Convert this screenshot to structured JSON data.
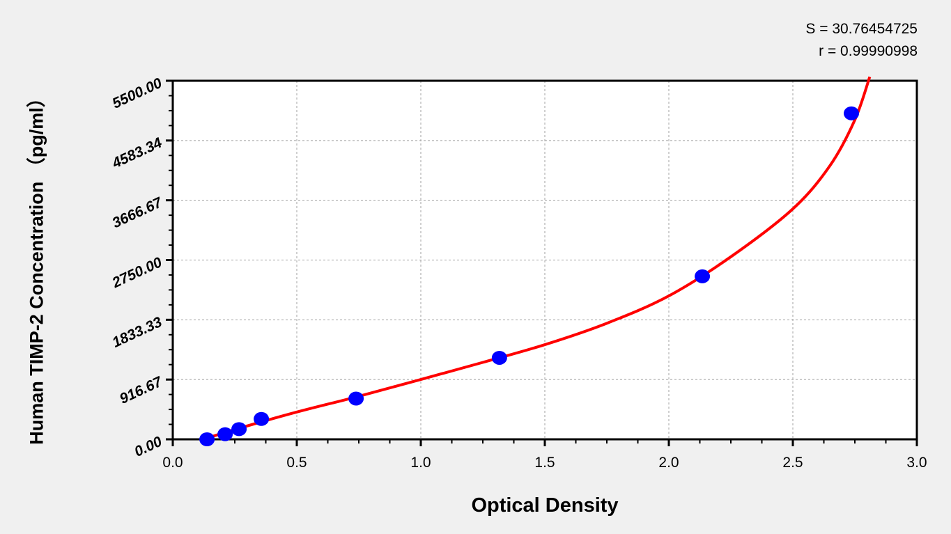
{
  "chart_data": {
    "type": "scatter",
    "title": "",
    "xlabel": "Optical Density",
    "ylabel": "Human TIMP-2 Concentration （pg/ml）",
    "xlim": [
      0,
      3.0
    ],
    "ylim": [
      0,
      5500
    ],
    "x_ticks": [
      "0.0",
      "0.5",
      "1.0",
      "1.5",
      "2.0",
      "2.5",
      "3.0"
    ],
    "y_ticks": [
      "0.00",
      "916.67",
      "1833.33",
      "2750.00",
      "3666.67",
      "4583.34",
      "5500.00"
    ],
    "grid": true,
    "annotations": {
      "s": "S = 30.76454725",
      "r": "r = 0.99990998"
    },
    "colors": {
      "points": "#0000ff",
      "fit": "#ff0000",
      "background": "#f0f0f0",
      "plot": "#ffffff"
    },
    "series": [
      {
        "type": "scatter",
        "x": [
          0.138,
          0.211,
          0.267,
          0.357,
          0.739,
          1.317,
          2.135,
          2.736
        ],
        "y": [
          0,
          78.13,
          156.25,
          312.5,
          625,
          1250,
          2500,
          5000
        ]
      },
      {
        "type": "line",
        "x": [
          0.124,
          0.25,
          0.5,
          0.75,
          1.0,
          1.25,
          1.5,
          1.75,
          2.0,
          2.25,
          2.5,
          2.65,
          2.75,
          2.81
        ],
        "y": [
          0,
          150,
          418,
          660,
          918,
          1180,
          1452,
          1780,
          2200,
          2800,
          3535,
          4200,
          4900,
          5560
        ]
      }
    ]
  }
}
